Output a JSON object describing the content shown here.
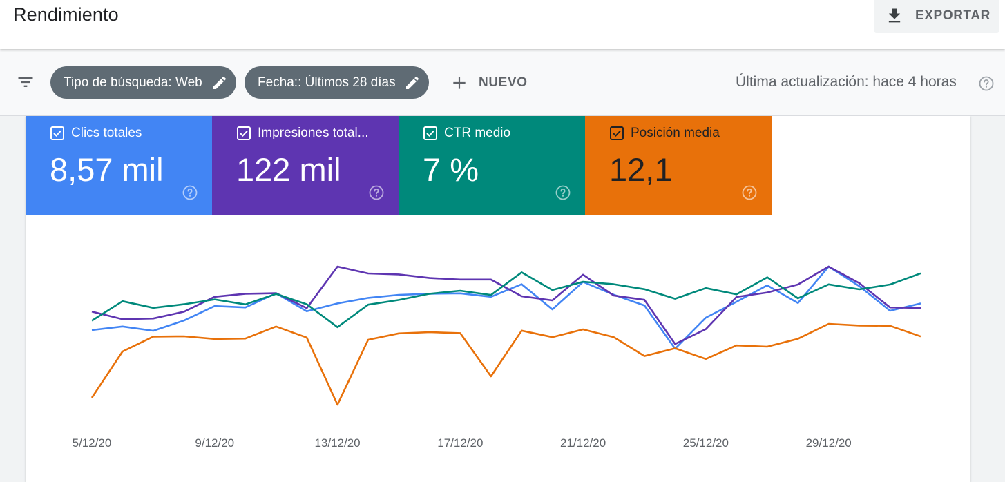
{
  "header": {
    "title": "Rendimiento",
    "export_label": "EXPORTAR"
  },
  "filters": {
    "chips": [
      {
        "label": "Tipo de búsqueda: Web"
      },
      {
        "label": "Fecha:: Últimos 28 días"
      }
    ],
    "new_label": "NUEVO",
    "last_update": "Última actualización: hace 4 horas"
  },
  "metrics": [
    {
      "label": "Clics totales",
      "value": "8,57 mil",
      "color": "#4285f4",
      "checked": true
    },
    {
      "label": "Impresiones total...",
      "value": "122 mil",
      "color": "#5e35b1",
      "checked": true
    },
    {
      "label": "CTR medio",
      "value": "7 %",
      "color": "#00897b",
      "checked": true
    },
    {
      "label": "Posición media",
      "value": "12,1",
      "color": "#e8710a",
      "checked": true
    }
  ],
  "chart_data": {
    "type": "line",
    "x": [
      "5/12/20",
      "6/12/20",
      "7/12/20",
      "8/12/20",
      "9/12/20",
      "10/12/20",
      "11/12/20",
      "12/12/20",
      "13/12/20",
      "14/12/20",
      "15/12/20",
      "16/12/20",
      "17/12/20",
      "18/12/20",
      "19/12/20",
      "20/12/20",
      "21/12/20",
      "22/12/20",
      "23/12/20",
      "24/12/20",
      "25/12/20",
      "26/12/20",
      "27/12/20",
      "28/12/20",
      "29/12/20",
      "30/12/20",
      "31/12/20",
      "1/1/21"
    ],
    "tick_labels": [
      "5/12/20",
      "9/12/20",
      "13/12/20",
      "17/12/20",
      "21/12/20",
      "25/12/20",
      "29/12/20"
    ],
    "y_normalized": true,
    "series": [
      {
        "key": "clics",
        "color": "#4285f4",
        "values": [
          0.54,
          0.566,
          0.535,
          0.609,
          0.714,
          0.704,
          0.806,
          0.676,
          0.733,
          0.773,
          0.795,
          0.803,
          0.806,
          0.781,
          0.872,
          0.69,
          0.889,
          0.796,
          0.718,
          0.405,
          0.63,
          0.745,
          0.864,
          0.736,
          1.0,
          0.858,
          0.68,
          0.733
        ]
      },
      {
        "key": "impresiones",
        "color": "#5e35b1",
        "values": [
          0.674,
          0.619,
          0.624,
          0.673,
          0.781,
          0.803,
          0.807,
          0.699,
          1.0,
          0.95,
          0.943,
          0.917,
          0.906,
          0.906,
          0.785,
          0.755,
          0.941,
          0.79,
          0.759,
          0.439,
          0.547,
          0.78,
          0.812,
          0.87,
          1.0,
          0.88,
          0.704,
          0.7
        ]
      },
      {
        "key": "ctr",
        "color": "#00897b",
        "values": [
          0.608,
          0.749,
          0.701,
          0.727,
          0.762,
          0.726,
          0.802,
          0.727,
          0.561,
          0.724,
          0.758,
          0.803,
          0.825,
          0.794,
          0.958,
          0.83,
          0.89,
          0.872,
          0.836,
          0.767,
          0.844,
          0.799,
          0.922,
          0.77,
          0.871,
          0.835,
          0.87,
          0.951
        ]
      },
      {
        "key": "posicion",
        "color": "#e8710a",
        "values": [
          0.05,
          0.385,
          0.493,
          0.495,
          0.476,
          0.479,
          0.566,
          0.486,
          0.0,
          0.47,
          0.516,
          0.525,
          0.518,
          0.205,
          0.536,
          0.489,
          0.545,
          0.489,
          0.352,
          0.408,
          0.331,
          0.429,
          0.42,
          0.477,
          0.585,
          0.573,
          0.571,
          0.494
        ]
      }
    ],
    "grid": false,
    "legend": "none"
  }
}
